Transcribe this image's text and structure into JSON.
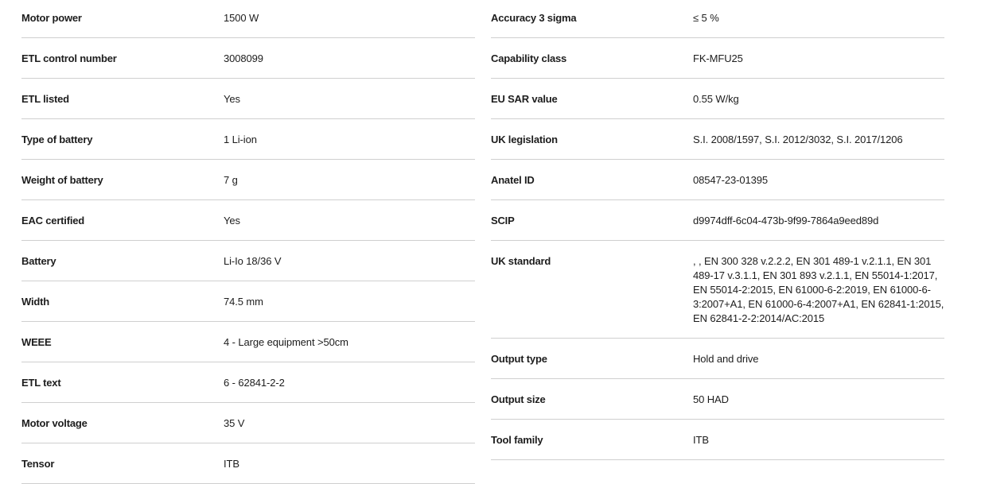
{
  "left": [
    {
      "label": "Motor power",
      "value": "1500 W"
    },
    {
      "label": "ETL control number",
      "value": "3008099"
    },
    {
      "label": "ETL listed",
      "value": "Yes"
    },
    {
      "label": "Type of battery",
      "value": "1 Li-ion"
    },
    {
      "label": "Weight of battery",
      "value": "7 g"
    },
    {
      "label": "EAC certified",
      "value": "Yes"
    },
    {
      "label": "Battery",
      "value": "Li-Io 18/36 V"
    },
    {
      "label": "Width",
      "value": "74.5 mm"
    },
    {
      "label": "WEEE",
      "value": "4 - Large equipment >50cm"
    },
    {
      "label": "ETL text",
      "value": "6 - 62841-2-2"
    },
    {
      "label": "Motor voltage",
      "value": "35 V"
    },
    {
      "label": "Tensor",
      "value": "ITB"
    }
  ],
  "right": [
    {
      "label": "Accuracy 3 sigma",
      "value": "≤ 5 %"
    },
    {
      "label": "Capability class",
      "value": "FK-MFU25"
    },
    {
      "label": "EU SAR value",
      "value": "0.55 W/kg"
    },
    {
      "label": "UK legislation",
      "value": "S.I. 2008/1597, S.I. 2012/3032, S.I. 2017/1206"
    },
    {
      "label": "Anatel ID",
      "value": "08547-23-01395"
    },
    {
      "label": "SCIP",
      "value": "d9974dff-6c04-473b-9f99-7864a9eed89d"
    },
    {
      "label": "UK standard",
      "value": ", , EN 300 328 v.2.2.2, EN 301 489-1 v.2.1.1, EN 301 489-17 v.3.1.1, EN 301 893 v.2.1.1, EN 55014-1:2017, EN 55014-2:2015, EN 61000-6-2:2019, EN 61000-6-3:2007+A1, EN 61000-6-4:2007+A1, EN 62841-1:2015, EN 62841-2-2:2014/AC:2015"
    },
    {
      "label": "Output type",
      "value": "Hold and drive"
    },
    {
      "label": "Output size",
      "value": "50 HAD"
    },
    {
      "label": "Tool family",
      "value": "ITB"
    }
  ]
}
